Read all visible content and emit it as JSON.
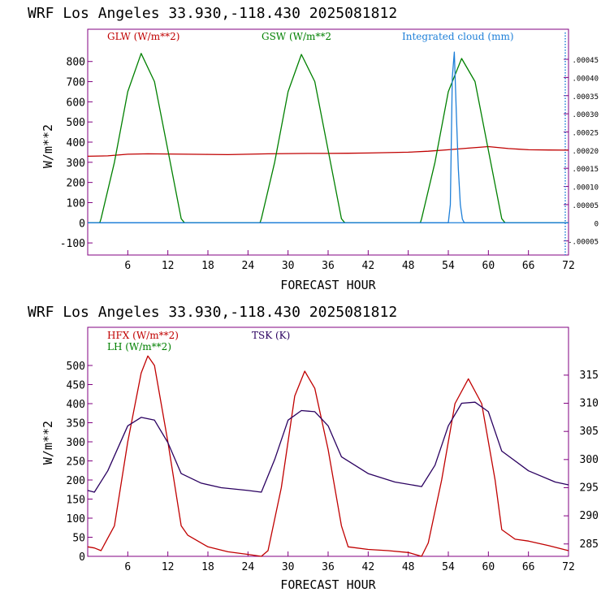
{
  "chart_data": [
    {
      "type": "line",
      "title": "WRF  Los Angeles   33.930,-118.430  2025081812",
      "xlabel": "FORECAST HOUR",
      "ylabel": "W/m**2",
      "xlim": [
        0,
        72
      ],
      "ylim": [
        -160,
        960
      ],
      "xticks": [
        6,
        12,
        18,
        24,
        30,
        36,
        42,
        48,
        54,
        60,
        66,
        72
      ],
      "yticks": [
        -100,
        0,
        100,
        200,
        300,
        400,
        500,
        600,
        700,
        800
      ],
      "y2lim": [
        -8.88e-05,
        0.0005328
      ],
      "y2ticks": [
        "-.00005",
        "0",
        ".00005",
        ".00010",
        ".00015",
        ".00020",
        ".00025",
        ".00030",
        ".00035",
        ".00040",
        ".00045"
      ],
      "series": [
        {
          "name": "GLW (W/m**2)",
          "color": "#c00000",
          "axis": "left",
          "x": [
            0,
            3,
            6,
            9,
            12,
            15,
            18,
            21,
            24,
            27,
            30,
            33,
            36,
            39,
            42,
            45,
            48,
            51,
            54,
            57,
            60,
            63,
            66,
            69,
            72
          ],
          "y": [
            330,
            332,
            340,
            342,
            341,
            340,
            339,
            338,
            340,
            342,
            343,
            344,
            344,
            345,
            346,
            348,
            350,
            355,
            362,
            370,
            378,
            368,
            362,
            361,
            360
          ]
        },
        {
          "name": "GSW (W/m**2",
          "color": "#008000",
          "axis": "left",
          "x": [
            0,
            1.8,
            2,
            4,
            6,
            8,
            10,
            12,
            14,
            14.5,
            16,
            18,
            20,
            22,
            24,
            25.8,
            26,
            28,
            30,
            32,
            34,
            36,
            38,
            38.5,
            40,
            42,
            44,
            46,
            48,
            49.8,
            50,
            52,
            54,
            56,
            58,
            60,
            62,
            62.5,
            64,
            66,
            68,
            70,
            72
          ],
          "y": [
            0,
            0,
            20,
            300,
            650,
            840,
            700,
            360,
            20,
            0,
            0,
            0,
            0,
            0,
            0,
            0,
            20,
            300,
            650,
            835,
            700,
            360,
            20,
            0,
            0,
            0,
            0,
            0,
            0,
            0,
            20,
            300,
            650,
            815,
            700,
            360,
            20,
            0,
            0,
            0,
            0,
            0,
            0
          ]
        },
        {
          "name": "Integrated cloud (mm)",
          "color": "#1e7fd8",
          "axis": "right",
          "x": [
            0,
            54,
            54.3,
            54.6,
            54.9,
            55.2,
            55.5,
            55.8,
            56.1,
            56.4,
            72
          ],
          "y": [
            0,
            0,
            5e-05,
            0.0004,
            0.00047,
            0.0003,
            0.00015,
            5e-05,
            1e-05,
            0,
            0
          ]
        }
      ]
    },
    {
      "type": "line",
      "title": "WRF  Los Angeles   33.930,-118.430  2025081812",
      "xlabel": "FORECAST HOUR",
      "ylabel": "W/m**2",
      "xlim": [
        0,
        72
      ],
      "ylim": [
        0,
        600
      ],
      "xticks": [
        6,
        12,
        18,
        24,
        30,
        36,
        42,
        48,
        54,
        60,
        66,
        72
      ],
      "yticks": [
        0,
        50,
        100,
        150,
        200,
        250,
        300,
        350,
        400,
        450,
        500
      ],
      "y2lim": [
        282.8,
        323.5
      ],
      "y2ticks": [
        285,
        290,
        295,
        300,
        305,
        310,
        315
      ],
      "series": [
        {
          "name": "HFX (W/m**2)",
          "color": "#c00000",
          "axis": "left",
          "x": [
            0,
            1,
            2,
            4,
            6,
            8,
            9,
            10,
            12,
            14,
            15,
            18,
            21,
            24,
            26,
            27,
            29,
            31,
            32.5,
            34,
            36,
            38,
            39,
            42,
            45,
            48,
            50,
            51,
            53,
            55,
            57,
            59,
            61,
            62,
            64,
            66,
            69,
            72
          ],
          "y": [
            25,
            22,
            15,
            80,
            300,
            480,
            525,
            500,
            300,
            80,
            55,
            25,
            12,
            5,
            0,
            15,
            180,
            420,
            485,
            440,
            280,
            80,
            25,
            18,
            15,
            10,
            0,
            35,
            200,
            400,
            465,
            400,
            200,
            70,
            45,
            40,
            28,
            15
          ]
        },
        {
          "name": "TSK (K)",
          "color": "#2a0060",
          "axis": "right",
          "x": [
            0,
            1,
            3,
            6,
            8,
            10,
            12,
            14,
            17,
            20,
            24,
            26,
            28,
            30,
            32,
            34,
            36,
            38,
            42,
            46,
            50,
            52,
            54,
            56,
            58,
            60,
            62,
            66,
            70,
            72
          ],
          "y": [
            294.5,
            294.2,
            298,
            306,
            307.5,
            307,
            303,
            297.5,
            295.8,
            295,
            294.5,
            294.2,
            300,
            307,
            308.7,
            308.5,
            306,
            300.5,
            297.5,
            296,
            295.2,
            299,
            306,
            310,
            310.2,
            308.5,
            301.5,
            298,
            296,
            295.5
          ]
        },
        {
          "name": "LH  (W/m**2)",
          "color": "#008000",
          "axis": "left",
          "x": [],
          "y": []
        }
      ]
    }
  ],
  "colors": {
    "frame": "#800080",
    "zero_line": "#1e7fd8"
  }
}
